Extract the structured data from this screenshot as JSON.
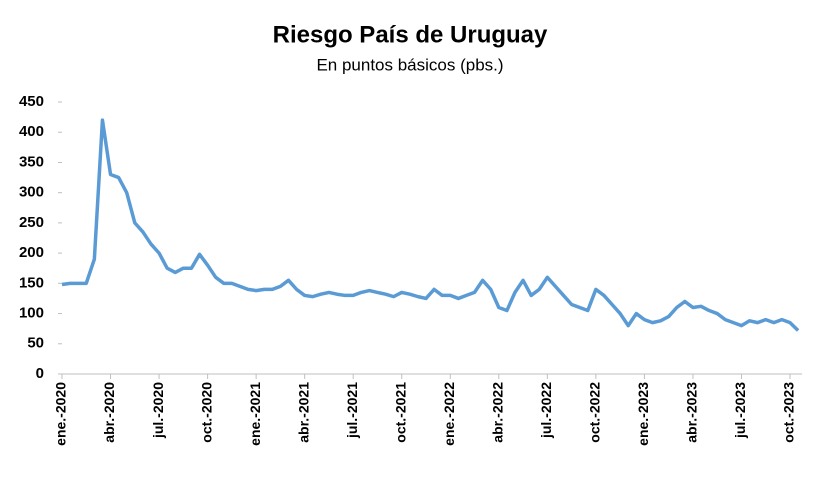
{
  "chart_data": {
    "type": "line",
    "title": "Riesgo País de Uruguay",
    "subtitle": "En puntos básicos (pbs.)",
    "categories": [
      "ene.-2020",
      null,
      null,
      null,
      null,
      null,
      "abr.-2020",
      null,
      null,
      null,
      null,
      null,
      "jul.-2020",
      null,
      null,
      null,
      null,
      null,
      "oct.-2020",
      null,
      null,
      null,
      null,
      null,
      "ene.-2021",
      null,
      null,
      null,
      null,
      null,
      "abr.-2021",
      null,
      null,
      null,
      null,
      null,
      "jul.-2021",
      null,
      null,
      null,
      null,
      null,
      "oct.-2021",
      null,
      null,
      null,
      null,
      null,
      "ene.-2022",
      null,
      null,
      null,
      null,
      null,
      "abr.-2022",
      null,
      null,
      null,
      null,
      null,
      "jul.-2022",
      null,
      null,
      null,
      null,
      null,
      "oct.-2022",
      null,
      null,
      null,
      null,
      null,
      "ene.-2023",
      null,
      null,
      null,
      null,
      null,
      "abr.-2023",
      null,
      null,
      null,
      null,
      null,
      "jul.-2023",
      null,
      null,
      null,
      null,
      null,
      "oct.-2023",
      null
    ],
    "series": [
      {
        "color": "#5b9bd5",
        "values": [
          148,
          150,
          150,
          150,
          190,
          420,
          330,
          325,
          300,
          250,
          235,
          215,
          200,
          175,
          168,
          175,
          175,
          198,
          180,
          160,
          150,
          150,
          145,
          140,
          138,
          140,
          140,
          145,
          155,
          140,
          130,
          128,
          132,
          135,
          132,
          130,
          130,
          135,
          138,
          135,
          132,
          128,
          135,
          132,
          128,
          125,
          140,
          130,
          130,
          125,
          130,
          135,
          155,
          140,
          110,
          105,
          135,
          155,
          130,
          140,
          160,
          145,
          130,
          115,
          110,
          105,
          140,
          130,
          115,
          100,
          80,
          100,
          90,
          85,
          88,
          95,
          110,
          120,
          110,
          112,
          105,
          100,
          90,
          85,
          80,
          88,
          85,
          90,
          85,
          90,
          85,
          72
        ]
      }
    ],
    "ylim": [
      0,
      450
    ],
    "yticks": [
      0,
      50,
      100,
      150,
      200,
      250,
      300,
      350,
      400,
      450
    ],
    "grid": false
  }
}
